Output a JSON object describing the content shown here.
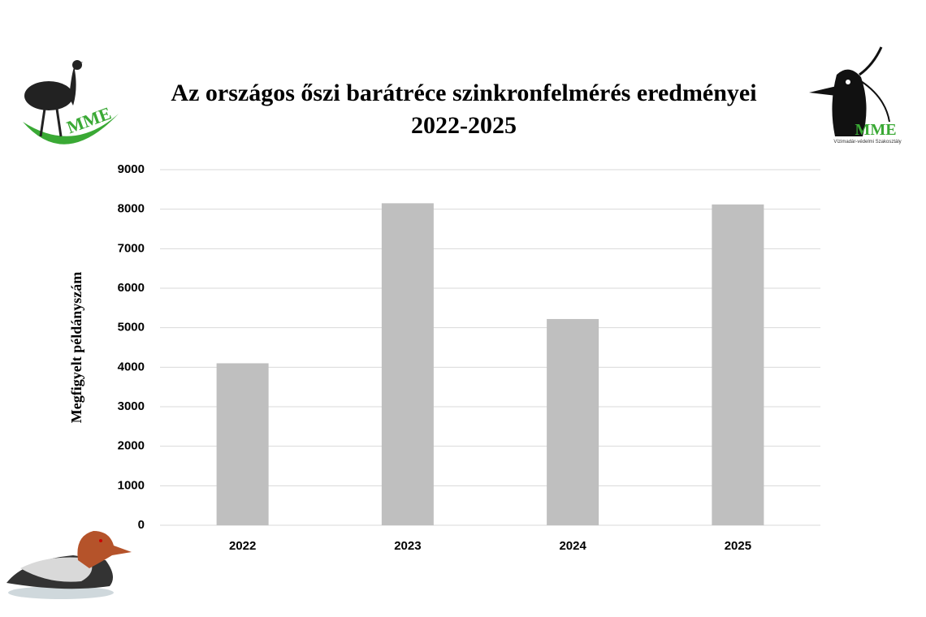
{
  "chart_data": {
    "type": "bar",
    "title": "Az országos őszi barátréce szinkronfelmérés eredményei",
    "subtitle": "2022-2025",
    "y_label": "Megfigyelt példányszám",
    "categories": [
      "2022",
      "2023",
      "2024",
      "2025"
    ],
    "values": [
      4100,
      8150,
      5220,
      8120
    ],
    "color": "#bfbfbf",
    "ylim": [
      0,
      9000
    ],
    "yticks": [
      0,
      1000,
      2000,
      3000,
      4000,
      5000,
      6000,
      7000,
      8000,
      9000
    ],
    "grid": true
  },
  "logos": {
    "left": "MME",
    "right": "MME",
    "right_caption": "Vízimadár-védelmi Szakosztály"
  }
}
